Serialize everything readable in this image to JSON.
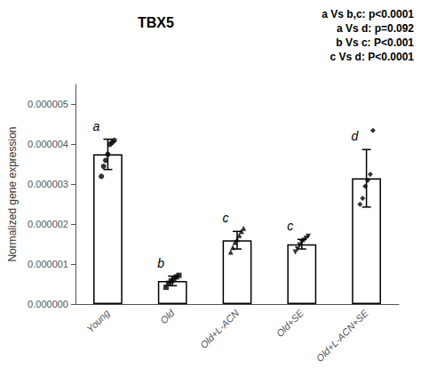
{
  "chart_data": {
    "type": "bar",
    "title": "TBX5",
    "ylabel": "Normalized gene expression",
    "categories": [
      "Young",
      "Old",
      "Old+L-ACN",
      "Old+SE",
      "Old+L-ACN+SE"
    ],
    "values": [
      3.75e-06,
      5.8e-07,
      1.6e-06,
      1.5e-06,
      3.15e-06
    ],
    "errors": [
      3.8e-07,
      1.2e-07,
      2.2e-07,
      1.2e-07,
      7.2e-07
    ],
    "color": "#ffffff",
    "points": [
      [
        3.2e-06,
        3.45e-06,
        3.6e-06,
        3.75e-06,
        4e-06,
        4.05e-06,
        4.1e-06
      ],
      [
        4.2e-07,
        5.2e-07,
        5.8e-07,
        6.2e-07,
        6.8e-07,
        7.2e-07
      ],
      [
        1.3e-06,
        1.42e-06,
        1.55e-06,
        1.62e-06,
        1.72e-06,
        1.82e-06,
        1.9e-06
      ],
      [
        1.3e-06,
        1.38e-06,
        1.48e-06,
        1.55e-06,
        1.6e-06,
        1.65e-06,
        1.7e-06
      ],
      [
        2.5e-06,
        2.65e-06,
        2.95e-06,
        3.1e-06,
        3.25e-06,
        4.35e-06
      ]
    ],
    "marker": [
      "circle",
      "square",
      "triangle-up",
      "triangle-down",
      "diamond"
    ],
    "group_labels": [
      "a",
      "b",
      "c",
      "c",
      "d"
    ],
    "annotations": [
      "a Vs b,c: p<0.0001",
      "a Vs d: p=0.092",
      "b Vs c: P<0.001",
      "c Vs d: P<0.0001"
    ],
    "ylim": [
      0,
      5.5e-06
    ],
    "yticks": [
      {
        "value": 0.0,
        "label": "0.000000"
      },
      {
        "value": 1e-06,
        "label": "0.000001"
      },
      {
        "value": 2e-06,
        "label": "0.000002"
      },
      {
        "value": 3e-06,
        "label": "0.000003"
      },
      {
        "value": 4e-06,
        "label": "0.000004"
      },
      {
        "value": 5e-06,
        "label": "0.000005"
      }
    ],
    "grid": false
  }
}
